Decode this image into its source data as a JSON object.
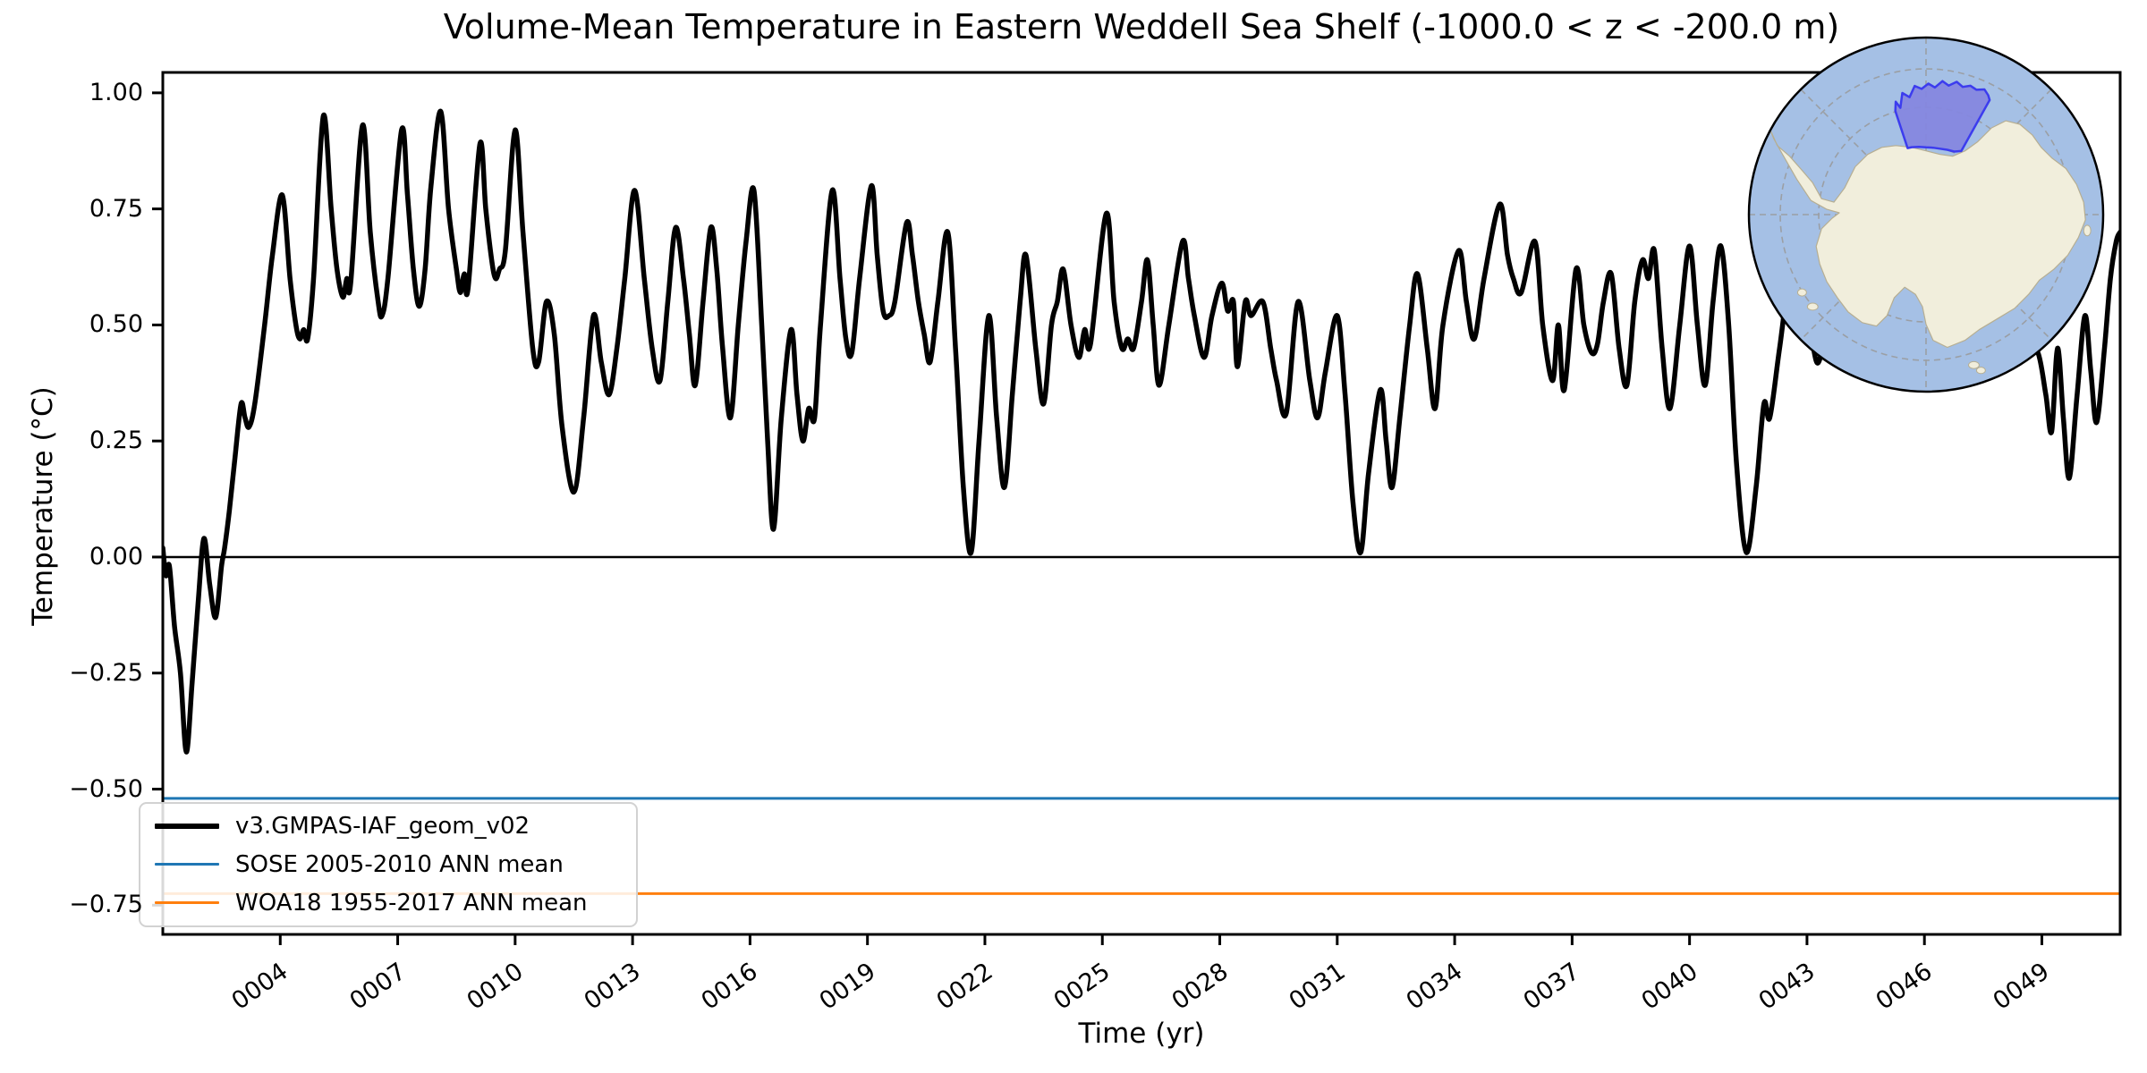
{
  "title": {
    "text": "Volume-Mean Temperature in Eastern Weddell Sea Shelf (-1000.0 < z < -200.0 m)"
  },
  "axes": {
    "xlabel": "Time (yr)",
    "ylabel": "Temperature (°C)",
    "xticks": {
      "values": [
        4,
        7,
        10,
        13,
        16,
        19,
        22,
        25,
        28,
        31,
        34,
        37,
        40,
        43,
        46,
        49
      ],
      "labels": [
        "0004",
        "0007",
        "0010",
        "0013",
        "0016",
        "0019",
        "0022",
        "0025",
        "0028",
        "0031",
        "0034",
        "0037",
        "0040",
        "0043",
        "0046",
        "0049"
      ]
    },
    "yticks": {
      "values": [
        1.0,
        0.75,
        0.5,
        0.25,
        0.0,
        -0.25,
        -0.5,
        -0.75
      ],
      "labels": [
        "1.00",
        "0.75",
        "0.50",
        "0.25",
        "0.00",
        "−0.25",
        "−0.50",
        "−0.75"
      ]
    }
  },
  "legend": {
    "items": [
      {
        "label": "v3.GMPAS-IAF_geom_v02",
        "color": "#000000",
        "linewidth": 6
      },
      {
        "label": "SOSE 2005-2010 ANN mean",
        "color": "#1f77b4",
        "linewidth": 3
      },
      {
        "label": "WOA18 1955-2017 ANN mean",
        "color": "#ff7f0e",
        "linewidth": 3
      }
    ]
  },
  "chart_data": {
    "type": "line",
    "title": "Volume-Mean Temperature in Eastern Weddell Sea Shelf (-1000.0 < z < -200.0 m)",
    "xlabel": "Time (yr)",
    "ylabel": "Temperature (°C)",
    "xlim": [
      1,
      51
    ],
    "ylim": [
      -0.813,
      1.044
    ],
    "grid": false,
    "legend_position": "lower left",
    "tick_label_rotation_deg": 35,
    "reference_lines": [
      {
        "name": "zero-line",
        "value": 0.0,
        "color": "#000000",
        "linewidth": 2.5
      },
      {
        "name": "SOSE 2005-2010 ANN mean",
        "value": -0.52,
        "color": "#1f77b4",
        "linewidth": 3
      },
      {
        "name": "WOA18 1955-2017 ANN mean",
        "value": -0.725,
        "color": "#ff7f0e",
        "linewidth": 3
      }
    ],
    "series": [
      {
        "name": "v3.GMPAS-IAF_geom_v02",
        "color": "#000000",
        "linewidth": 5.5,
        "x_unit": "model year",
        "y_unit": "°C",
        "points": [
          [
            1.0,
            0.02
          ],
          [
            1.08,
            -0.04
          ],
          [
            1.17,
            -0.02
          ],
          [
            1.3,
            -0.15
          ],
          [
            1.45,
            -0.25
          ],
          [
            1.6,
            -0.42
          ],
          [
            1.75,
            -0.27
          ],
          [
            1.9,
            -0.1
          ],
          [
            2.05,
            0.04
          ],
          [
            2.2,
            -0.06
          ],
          [
            2.35,
            -0.13
          ],
          [
            2.5,
            -0.02
          ],
          [
            2.58,
            0.02
          ],
          [
            2.7,
            0.1
          ],
          [
            2.85,
            0.22
          ],
          [
            3.0,
            0.33
          ],
          [
            3.1,
            0.3
          ],
          [
            3.2,
            0.28
          ],
          [
            3.35,
            0.33
          ],
          [
            3.6,
            0.5
          ],
          [
            3.8,
            0.65
          ],
          [
            4.05,
            0.78
          ],
          [
            4.25,
            0.6
          ],
          [
            4.4,
            0.5
          ],
          [
            4.5,
            0.47
          ],
          [
            4.6,
            0.49
          ],
          [
            4.7,
            0.47
          ],
          [
            4.85,
            0.6
          ],
          [
            5.1,
            0.95
          ],
          [
            5.3,
            0.75
          ],
          [
            5.45,
            0.62
          ],
          [
            5.6,
            0.56
          ],
          [
            5.7,
            0.6
          ],
          [
            5.8,
            0.59
          ],
          [
            6.1,
            0.93
          ],
          [
            6.3,
            0.7
          ],
          [
            6.5,
            0.55
          ],
          [
            6.6,
            0.52
          ],
          [
            6.75,
            0.6
          ],
          [
            7.1,
            0.92
          ],
          [
            7.25,
            0.78
          ],
          [
            7.4,
            0.62
          ],
          [
            7.55,
            0.54
          ],
          [
            7.7,
            0.62
          ],
          [
            7.85,
            0.8
          ],
          [
            8.1,
            0.96
          ],
          [
            8.3,
            0.75
          ],
          [
            8.5,
            0.62
          ],
          [
            8.6,
            0.57
          ],
          [
            8.7,
            0.61
          ],
          [
            8.8,
            0.58
          ],
          [
            9.1,
            0.89
          ],
          [
            9.25,
            0.75
          ],
          [
            9.4,
            0.64
          ],
          [
            9.5,
            0.6
          ],
          [
            9.6,
            0.62
          ],
          [
            9.75,
            0.66
          ],
          [
            10.0,
            0.92
          ],
          [
            10.2,
            0.7
          ],
          [
            10.45,
            0.45
          ],
          [
            10.6,
            0.42
          ],
          [
            10.8,
            0.55
          ],
          [
            11.0,
            0.48
          ],
          [
            11.2,
            0.28
          ],
          [
            11.5,
            0.14
          ],
          [
            11.75,
            0.3
          ],
          [
            12.0,
            0.52
          ],
          [
            12.2,
            0.42
          ],
          [
            12.4,
            0.35
          ],
          [
            12.6,
            0.45
          ],
          [
            12.8,
            0.6
          ],
          [
            13.05,
            0.79
          ],
          [
            13.3,
            0.6
          ],
          [
            13.5,
            0.45
          ],
          [
            13.7,
            0.38
          ],
          [
            13.9,
            0.55
          ],
          [
            14.1,
            0.71
          ],
          [
            14.3,
            0.6
          ],
          [
            14.45,
            0.48
          ],
          [
            14.6,
            0.37
          ],
          [
            14.8,
            0.55
          ],
          [
            15.0,
            0.71
          ],
          [
            15.15,
            0.62
          ],
          [
            15.3,
            0.45
          ],
          [
            15.5,
            0.3
          ],
          [
            15.7,
            0.5
          ],
          [
            15.9,
            0.68
          ],
          [
            16.1,
            0.79
          ],
          [
            16.3,
            0.5
          ],
          [
            16.45,
            0.25
          ],
          [
            16.6,
            0.06
          ],
          [
            16.8,
            0.3
          ],
          [
            17.05,
            0.49
          ],
          [
            17.2,
            0.35
          ],
          [
            17.35,
            0.25
          ],
          [
            17.5,
            0.32
          ],
          [
            17.65,
            0.3
          ],
          [
            17.8,
            0.5
          ],
          [
            18.1,
            0.79
          ],
          [
            18.3,
            0.6
          ],
          [
            18.45,
            0.47
          ],
          [
            18.6,
            0.44
          ],
          [
            18.8,
            0.6
          ],
          [
            19.1,
            0.8
          ],
          [
            19.25,
            0.65
          ],
          [
            19.4,
            0.53
          ],
          [
            19.55,
            0.52
          ],
          [
            19.7,
            0.55
          ],
          [
            20.0,
            0.72
          ],
          [
            20.15,
            0.65
          ],
          [
            20.3,
            0.55
          ],
          [
            20.45,
            0.48
          ],
          [
            20.6,
            0.42
          ],
          [
            20.8,
            0.55
          ],
          [
            21.05,
            0.7
          ],
          [
            21.25,
            0.45
          ],
          [
            21.45,
            0.15
          ],
          [
            21.65,
            0.01
          ],
          [
            21.85,
            0.25
          ],
          [
            22.1,
            0.52
          ],
          [
            22.3,
            0.3
          ],
          [
            22.5,
            0.15
          ],
          [
            22.7,
            0.35
          ],
          [
            22.9,
            0.55
          ],
          [
            23.05,
            0.65
          ],
          [
            23.3,
            0.45
          ],
          [
            23.5,
            0.33
          ],
          [
            23.7,
            0.5
          ],
          [
            23.85,
            0.55
          ],
          [
            24.0,
            0.62
          ],
          [
            24.2,
            0.5
          ],
          [
            24.4,
            0.43
          ],
          [
            24.55,
            0.49
          ],
          [
            24.7,
            0.46
          ],
          [
            25.1,
            0.74
          ],
          [
            25.3,
            0.55
          ],
          [
            25.5,
            0.45
          ],
          [
            25.65,
            0.47
          ],
          [
            25.8,
            0.45
          ],
          [
            26.0,
            0.55
          ],
          [
            26.15,
            0.64
          ],
          [
            26.3,
            0.5
          ],
          [
            26.45,
            0.37
          ],
          [
            26.7,
            0.5
          ],
          [
            27.05,
            0.68
          ],
          [
            27.2,
            0.6
          ],
          [
            27.35,
            0.52
          ],
          [
            27.6,
            0.43
          ],
          [
            27.8,
            0.52
          ],
          [
            28.05,
            0.59
          ],
          [
            28.2,
            0.53
          ],
          [
            28.35,
            0.55
          ],
          [
            28.45,
            0.41
          ],
          [
            28.65,
            0.55
          ],
          [
            28.8,
            0.52
          ],
          [
            29.1,
            0.55
          ],
          [
            29.3,
            0.45
          ],
          [
            29.45,
            0.38
          ],
          [
            29.7,
            0.31
          ],
          [
            30.0,
            0.55
          ],
          [
            30.3,
            0.38
          ],
          [
            30.5,
            0.3
          ],
          [
            30.7,
            0.4
          ],
          [
            31.0,
            0.52
          ],
          [
            31.2,
            0.35
          ],
          [
            31.4,
            0.12
          ],
          [
            31.6,
            0.01
          ],
          [
            31.8,
            0.18
          ],
          [
            32.1,
            0.36
          ],
          [
            32.25,
            0.25
          ],
          [
            32.4,
            0.15
          ],
          [
            32.6,
            0.3
          ],
          [
            32.85,
            0.5
          ],
          [
            33.05,
            0.61
          ],
          [
            33.3,
            0.45
          ],
          [
            33.5,
            0.32
          ],
          [
            33.7,
            0.5
          ],
          [
            34.1,
            0.66
          ],
          [
            34.3,
            0.55
          ],
          [
            34.5,
            0.47
          ],
          [
            34.75,
            0.6
          ],
          [
            35.15,
            0.76
          ],
          [
            35.35,
            0.65
          ],
          [
            35.5,
            0.6
          ],
          [
            35.7,
            0.57
          ],
          [
            36.05,
            0.68
          ],
          [
            36.25,
            0.5
          ],
          [
            36.5,
            0.38
          ],
          [
            36.65,
            0.5
          ],
          [
            36.8,
            0.36
          ],
          [
            37.1,
            0.62
          ],
          [
            37.3,
            0.5
          ],
          [
            37.5,
            0.44
          ],
          [
            37.65,
            0.46
          ],
          [
            37.8,
            0.55
          ],
          [
            38.0,
            0.61
          ],
          [
            38.2,
            0.45
          ],
          [
            38.4,
            0.37
          ],
          [
            38.6,
            0.55
          ],
          [
            38.8,
            0.64
          ],
          [
            38.95,
            0.6
          ],
          [
            39.1,
            0.66
          ],
          [
            39.3,
            0.45
          ],
          [
            39.5,
            0.32
          ],
          [
            39.75,
            0.5
          ],
          [
            40.0,
            0.67
          ],
          [
            40.2,
            0.5
          ],
          [
            40.4,
            0.37
          ],
          [
            40.6,
            0.55
          ],
          [
            40.8,
            0.67
          ],
          [
            41.0,
            0.5
          ],
          [
            41.2,
            0.2
          ],
          [
            41.45,
            0.01
          ],
          [
            41.7,
            0.15
          ],
          [
            41.9,
            0.33
          ],
          [
            42.05,
            0.3
          ],
          [
            42.3,
            0.45
          ],
          [
            42.6,
            0.62
          ],
          [
            42.8,
            0.5
          ],
          [
            43.1,
            0.47
          ],
          [
            43.3,
            0.42
          ],
          [
            43.6,
            0.55
          ],
          [
            43.9,
            0.68
          ],
          [
            44.2,
            0.55
          ],
          [
            44.5,
            0.42
          ],
          [
            44.8,
            0.55
          ],
          [
            45.1,
            0.7
          ],
          [
            45.4,
            0.55
          ],
          [
            45.6,
            0.45
          ],
          [
            45.9,
            0.6
          ],
          [
            46.1,
            0.72
          ],
          [
            46.4,
            0.55
          ],
          [
            46.6,
            0.45
          ],
          [
            46.9,
            0.58
          ],
          [
            47.1,
            0.65
          ],
          [
            47.35,
            0.45
          ],
          [
            47.55,
            0.39
          ],
          [
            47.8,
            0.45
          ],
          [
            48.1,
            0.6
          ],
          [
            48.4,
            0.5
          ],
          [
            48.6,
            0.45
          ],
          [
            48.9,
            0.44
          ],
          [
            49.1,
            0.35
          ],
          [
            49.25,
            0.27
          ],
          [
            49.4,
            0.45
          ],
          [
            49.55,
            0.3
          ],
          [
            49.7,
            0.17
          ],
          [
            49.9,
            0.35
          ],
          [
            50.1,
            0.52
          ],
          [
            50.25,
            0.4
          ],
          [
            50.4,
            0.29
          ],
          [
            50.6,
            0.45
          ],
          [
            50.75,
            0.6
          ],
          [
            50.9,
            0.68
          ],
          [
            51.0,
            0.7
          ]
        ]
      }
    ]
  },
  "inset_map": {
    "description": "south-polar-stereographic-antarctica-inset",
    "ocean_color": "#a5c0e5",
    "land_color": "#f1eedc",
    "coast_color": "#b6ae92",
    "graticule_color": "#999999",
    "region_fill": "#8587df",
    "region_edge": "#3c3cee",
    "outline_color": "#000000"
  }
}
